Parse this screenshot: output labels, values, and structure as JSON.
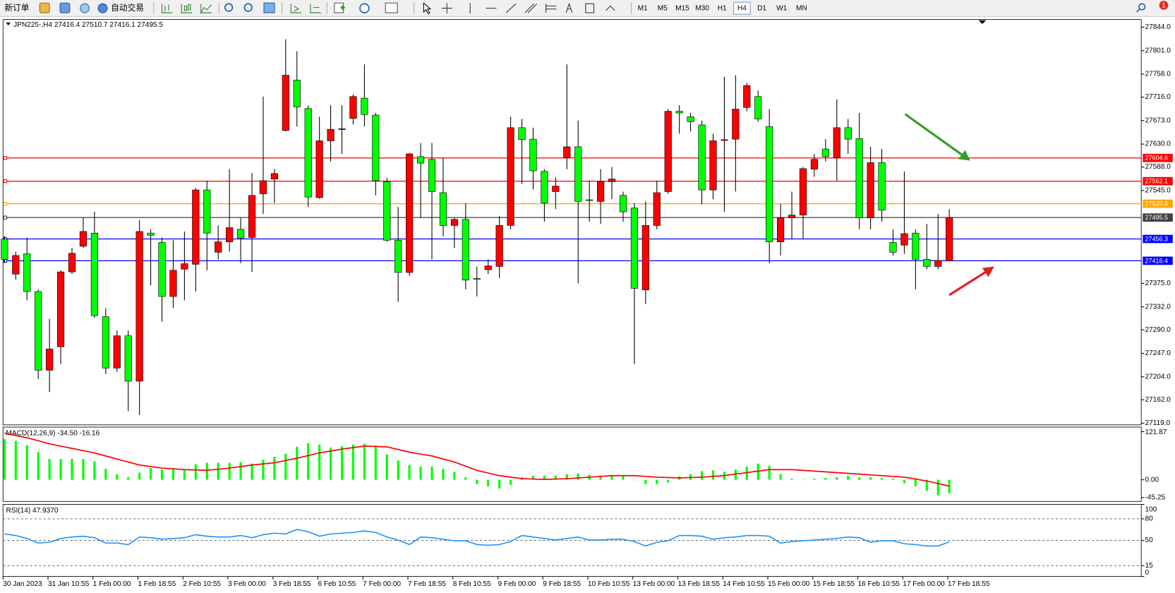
{
  "toolbar": {
    "new_order": "新订单",
    "auto_trading": "自动交易",
    "timeframes": [
      "M1",
      "M5",
      "M15",
      "M30",
      "H1",
      "H4",
      "D1",
      "W1",
      "MN"
    ],
    "active_timeframe": "H4",
    "notifications": 1
  },
  "chart_data": [
    {
      "type": "candlestick",
      "title": "JPN225-,H4",
      "categories": [
        "30 Jan 2023",
        null,
        null,
        null,
        "31 Jan 10:55",
        null,
        null,
        null,
        "1 Feb 00:00",
        null,
        null,
        null,
        "1 Feb 18:55",
        null,
        null,
        null,
        "2 Feb 10:55",
        null,
        null,
        null,
        "3 Feb 00:00",
        null,
        null,
        null,
        "3 Feb 18:55",
        null,
        null,
        null,
        "6 Feb 10:55",
        null,
        null,
        null,
        "7 Feb 00:00",
        null,
        null,
        null,
        "7 Feb 18:55",
        null,
        null,
        null,
        "8 Feb 10:55",
        null,
        null,
        null,
        "9 Feb 00:00",
        null,
        null,
        null,
        "9 Feb 18:55",
        null,
        null,
        null,
        "10 Feb 10:55",
        null,
        null,
        null,
        "13 Feb 00:00",
        null,
        null,
        null,
        "13 Feb 18:55",
        null,
        null,
        null,
        "14 Feb 10:55",
        null,
        null,
        null,
        "15 Feb 00:00",
        null,
        null,
        null,
        "15 Feb 18:55",
        null,
        null,
        null,
        "16 Feb 10:55",
        null,
        null,
        null,
        "17 Feb 00:00",
        null,
        null,
        null,
        "17 Feb 18:55"
      ],
      "open": [
        27456,
        27392,
        27429,
        27360,
        27216,
        27259,
        27396,
        27443,
        27467,
        27314,
        27220,
        27279,
        27196,
        27467,
        27450,
        27351,
        27401,
        27410,
        27546,
        27432,
        27451,
        27474,
        27459,
        27539,
        27566,
        27655,
        27747,
        27695,
        27532,
        27636,
        27657,
        27677,
        27714,
        27683,
        27561,
        27454,
        27395,
        27607,
        27602,
        27541,
        27481,
        27492,
        27384,
        27400,
        27406,
        27481,
        27660,
        27639,
        27580,
        27543,
        27605,
        27625,
        27528,
        27525,
        27561,
        27536,
        27513,
        27363,
        27481,
        27543,
        27690,
        27680,
        27665,
        27546,
        27637,
        27639,
        27697,
        27717,
        27662,
        27451,
        27495,
        27500,
        27584,
        27621,
        27605,
        27660,
        27640,
        27495,
        27596,
        27450,
        27445,
        27467,
        27419,
        27406,
        27416.4
      ],
      "high": [
        27461,
        27433,
        27459,
        27364,
        27310,
        27399,
        27440,
        27495,
        27506,
        27330,
        27289,
        27289,
        27491,
        27474,
        27459,
        27454,
        27470,
        27550,
        27563,
        27481,
        27584,
        27495,
        27577,
        27717,
        27584,
        27822,
        27800,
        27701,
        27680,
        27701,
        27701,
        27721,
        27776,
        27687,
        27568,
        27515,
        27614,
        27632,
        27632,
        27605,
        27495,
        27522,
        27406,
        27419,
        27498,
        27680,
        27676,
        27660,
        27584,
        27569,
        27776,
        27673,
        27563,
        27584,
        27588,
        27543,
        27522,
        27525,
        27563,
        27694,
        27701,
        27687,
        27673,
        27649,
        27753,
        27756,
        27742,
        27728,
        27694,
        27520,
        27543,
        27588,
        27612,
        27639,
        27712,
        27676,
        27687,
        27625,
        27621,
        27474,
        27580,
        27474,
        27484,
        27502,
        27510.7
      ],
      "low": [
        27412,
        27382,
        27344,
        27200,
        27176,
        27227,
        27392,
        27440,
        27312,
        27209,
        27213,
        27141,
        27134,
        27371,
        27305,
        27330,
        27344,
        27360,
        27399,
        27419,
        27433,
        27412,
        27396,
        27502,
        27522,
        27653,
        27662,
        27515,
        27530,
        27598,
        27612,
        27666,
        27662,
        27536,
        27451,
        27341,
        27389,
        27495,
        27419,
        27461,
        27440,
        27364,
        27351,
        27392,
        27385,
        27474,
        27557,
        27547,
        27488,
        27511,
        27584,
        27375,
        27488,
        27484,
        27529,
        27488,
        27227,
        27337,
        27474,
        27539,
        27649,
        27653,
        27520,
        27529,
        27506,
        27543,
        27690,
        27671,
        27412,
        27426,
        27456,
        27456,
        27570,
        27598,
        27563,
        27612,
        27474,
        27474,
        27488,
        27426,
        27429,
        27364,
        27401,
        27401,
        27416.1
      ],
      "close": [
        27419,
        27426,
        27360,
        27216,
        27255,
        27396,
        27430,
        27470,
        27316,
        27220,
        27279,
        27196,
        27470,
        27463,
        27351,
        27399,
        27411,
        27546,
        27467,
        27451,
        27477,
        27458,
        27536,
        27563,
        27576,
        27756,
        27698,
        27533,
        27636,
        27657,
        27658,
        27717,
        27684,
        27563,
        27454,
        27395,
        27612,
        27595,
        27543,
        27481,
        27492,
        27381,
        27383,
        27407,
        27481,
        27660,
        27638,
        27581,
        27522,
        27553,
        27625,
        27525,
        27527,
        27561,
        27566,
        27506,
        27366,
        27481,
        27541,
        27690,
        27687,
        27671,
        27546,
        27636,
        27638,
        27694,
        27737,
        27676,
        27451,
        27495,
        27500,
        27585,
        27602,
        27607,
        27660,
        27639,
        27495,
        27596,
        27509,
        27432,
        27466,
        27419,
        27406,
        27417,
        27495.5
      ],
      "up_color": "#ff0000",
      "down_color": "#00ff00",
      "ylim": [
        27116,
        27858
      ],
      "yticks": [
        {
          "value": 27844,
          "label": "27844.0"
        },
        {
          "value": 27801,
          "label": "27801.0"
        },
        {
          "value": 27758,
          "label": "27758.0"
        },
        {
          "value": 27716,
          "label": "27716.0"
        },
        {
          "value": 27673,
          "label": "27673.0"
        },
        {
          "value": 27630,
          "label": "27630.0"
        },
        {
          "value": 27588,
          "label": "27588.0"
        },
        {
          "value": 27545,
          "label": "27545.0"
        },
        {
          "value": 27375,
          "label": "27375.0"
        },
        {
          "value": 27332,
          "label": "27332.0"
        },
        {
          "value": 27290,
          "label": "27290.0"
        },
        {
          "value": 27247,
          "label": "27247.0"
        },
        {
          "value": 27204,
          "label": "27204.0"
        },
        {
          "value": 27162,
          "label": "27162.0"
        },
        {
          "value": 27119,
          "label": "27119.0"
        }
      ],
      "levels": [
        {
          "value": 27604.6,
          "color": "#ff0000"
        },
        {
          "value": 27562.1,
          "color": "#ff0000"
        },
        {
          "value": 27520.8,
          "color": "#ffa500"
        },
        {
          "value": 27495.5,
          "color": "#404040"
        },
        {
          "value": 27456.3,
          "color": "#0000ff"
        },
        {
          "value": 27416.4,
          "color": "#0000ff"
        }
      ],
      "grid": false
    },
    {
      "type": "macd",
      "title": "MACD(12,26,9)",
      "series": [
        {
          "color": "#00ff00",
          "current_label": "-34.50",
          "values": [
            102.6,
            98.7,
            87.2,
            69.9,
            52.6,
            52.6,
            52.6,
            52.6,
            46.9,
            27.7,
            14.2,
            6.5,
            18.1,
            29.6,
            25.7,
            25.7,
            23.8,
            39.2,
            43.0,
            43.0,
            43.0,
            45.0,
            41.1,
            50.7,
            58.4,
            66.1,
            83.4,
            93.0,
            89.1,
            81.5,
            85.3,
            89.1,
            91.1,
            83.4,
            64.2,
            48.8,
            37.3,
            33.4,
            33.4,
            27.7,
            20.0,
            6.5,
            -10.8,
            -16.5,
            -22.3,
            -12.7,
            6.5,
            10.4,
            10.4,
            10.4,
            14.2,
            16.1,
            12.3,
            10.4,
            10.4,
            10.4,
            -1.2,
            -10.8,
            -10.8,
            -6.9,
            8.5,
            14.2,
            21.9,
            23.8,
            20.0,
            25.7,
            33.4,
            41.1,
            35.3,
            14.2,
            2.7,
            0.8,
            2.7,
            4.6,
            6.5,
            10.4,
            6.5,
            6.5,
            4.6,
            2.7,
            -8.8,
            -16.5,
            -28.0,
            -39.6,
            -34.5
          ]
        },
        {
          "color": "#ff0000",
          "current_label": "-16.16",
          "values": [
            118.0,
            112.2,
            106.4,
            98.8,
            91.1,
            85.3,
            79.5,
            73.8,
            68.0,
            60.3,
            52.6,
            45.0,
            37.3,
            33.5,
            29.6,
            27.7,
            25.7,
            24.8,
            23.8,
            26.7,
            29.6,
            33.5,
            37.3,
            40.2,
            43.0,
            48.8,
            54.5,
            61.3,
            68.0,
            72.8,
            77.6,
            81.5,
            85.3,
            84.4,
            83.4,
            76.7,
            69.9,
            65.1,
            60.3,
            52.7,
            45.0,
            34.4,
            23.8,
            17.1,
            10.4,
            6.6,
            2.7,
            1.8,
            0.8,
            1.8,
            2.7,
            4.6,
            6.5,
            8.5,
            10.4,
            10.4,
            10.4,
            8.5,
            6.5,
            5.6,
            4.6,
            5.6,
            6.5,
            8.5,
            10.4,
            14.3,
            18.1,
            21.9,
            25.7,
            25.7,
            25.7,
            23.8,
            21.9,
            20.0,
            18.1,
            16.2,
            14.2,
            12.3,
            10.4,
            8.5,
            6.5,
            1.7,
            -3.1,
            -9.6,
            -16.16
          ]
        }
      ],
      "ylim": [
        -54.9,
        133.4
      ],
      "yticks": [
        121.87,
        {
          "value": 0,
          "label": "0.00"
        },
        -45.25
      ]
    },
    {
      "type": "line",
      "title": "RSI(14)",
      "color": "#1e90ff",
      "current_label": "47.9370",
      "values": [
        59.0,
        56.9,
        52.7,
        46.4,
        47.5,
        52.7,
        54.8,
        55.9,
        53.8,
        46.4,
        46.4,
        44.3,
        54.8,
        53.8,
        51.7,
        52.7,
        53.8,
        58.0,
        55.9,
        54.8,
        54.8,
        56.9,
        53.8,
        58.0,
        60.1,
        59.0,
        65.3,
        62.2,
        55.9,
        59.0,
        60.1,
        61.1,
        63.2,
        61.1,
        54.8,
        50.6,
        44.3,
        54.8,
        53.8,
        51.7,
        49.6,
        49.6,
        44.3,
        43.3,
        44.3,
        48.5,
        56.9,
        54.8,
        52.7,
        50.6,
        52.7,
        54.8,
        50.6,
        50.6,
        51.7,
        51.7,
        48.5,
        42.3,
        47.5,
        49.6,
        56.9,
        56.9,
        55.9,
        51.7,
        53.8,
        54.8,
        56.9,
        56.9,
        55.9,
        46.4,
        48.5,
        49.6,
        50.6,
        51.7,
        52.7,
        54.8,
        53.8,
        47.5,
        49.6,
        49.6,
        45.4,
        44.3,
        42.3,
        42.3,
        47.937
      ],
      "ylim": [
        0,
        100
      ],
      "yticks": [
        100,
        80,
        50,
        15,
        0
      ],
      "levels": [
        80,
        50,
        15
      ]
    }
  ]
}
